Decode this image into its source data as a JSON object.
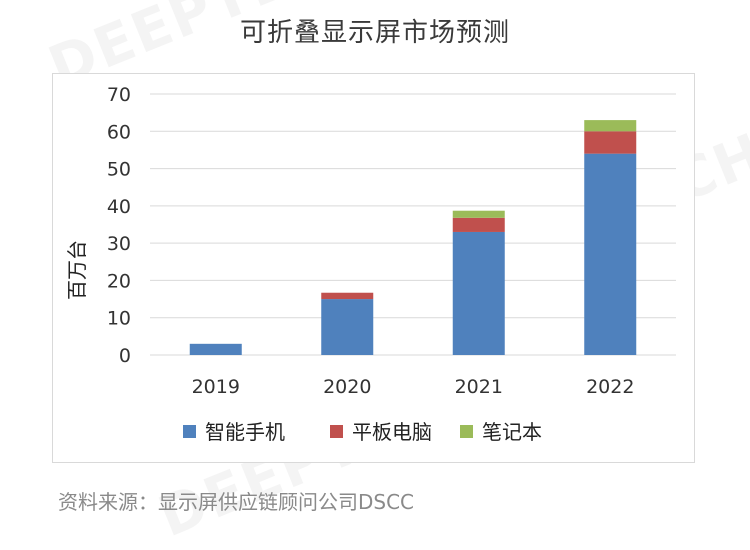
{
  "page": {
    "title": "可折叠显示屏市场预测",
    "source": "资料来源：显示屏供应链顾问公司DSCC",
    "watermark": "DEEPTECH"
  },
  "chart_data": {
    "type": "bar",
    "stacked": true,
    "categories": [
      "2019",
      "2020",
      "2021",
      "2022"
    ],
    "series": [
      {
        "name": "智能手机",
        "color": "#4f81bd",
        "values": [
          3,
          15,
          33,
          54
        ]
      },
      {
        "name": "平板电脑",
        "color": "#c0504d",
        "values": [
          0,
          1.7,
          3.8,
          6
        ]
      },
      {
        "name": "笔记本",
        "color": "#9bbb59",
        "values": [
          0,
          0,
          1.9,
          3
        ]
      }
    ],
    "title": "",
    "xlabel": "",
    "ylabel": "百万台",
    "ylim": [
      0,
      70
    ],
    "yticks": [
      0,
      10,
      20,
      30,
      40,
      50,
      60,
      70
    ],
    "grid": true,
    "legend": "bottom"
  }
}
